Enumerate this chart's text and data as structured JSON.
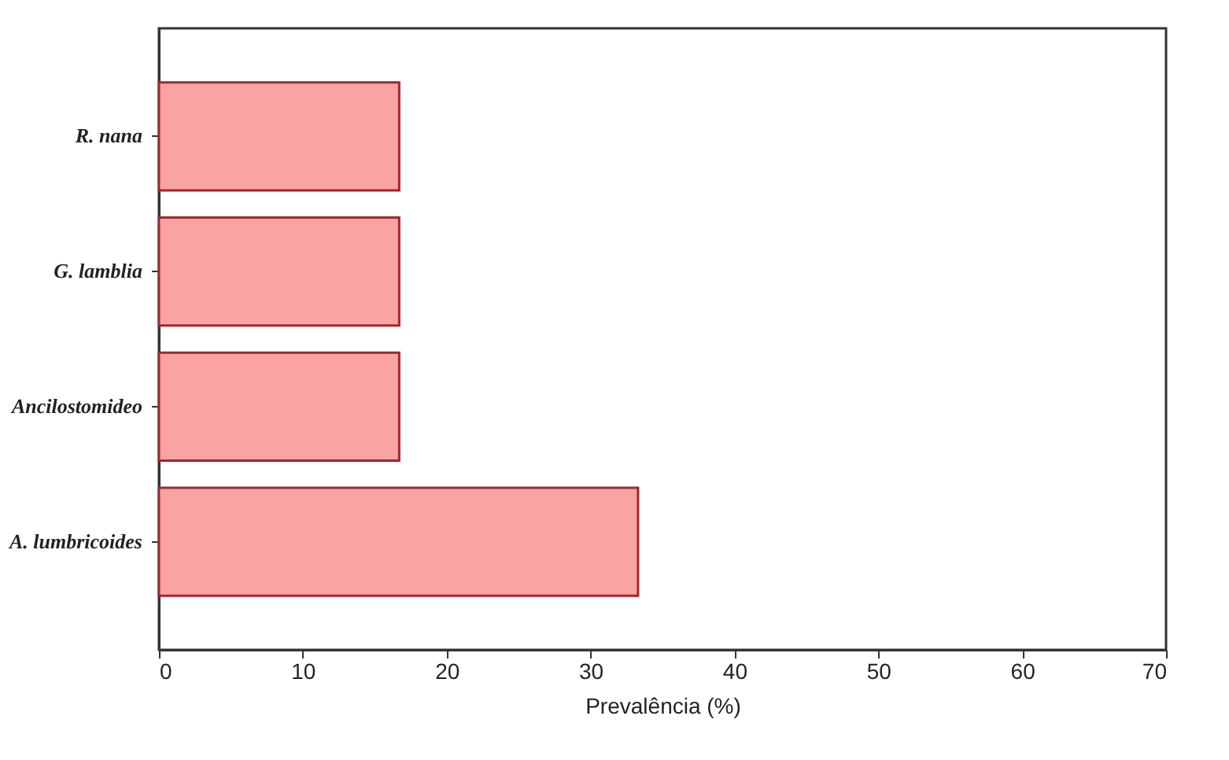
{
  "chart_data": {
    "type": "bar",
    "orientation": "horizontal",
    "xlabel": "Prevalência (%)",
    "categories": [
      "R. nana",
      "G. lamblia",
      "Ancilostomideo",
      "A. lumbricoides"
    ],
    "values": [
      16.7,
      16.7,
      16.7,
      33.3
    ],
    "color": "#f9a3a3",
    "xlim": [
      0,
      70
    ],
    "xticks": [
      0,
      10,
      20,
      30,
      40,
      50,
      60,
      70
    ],
    "grid": false
  }
}
